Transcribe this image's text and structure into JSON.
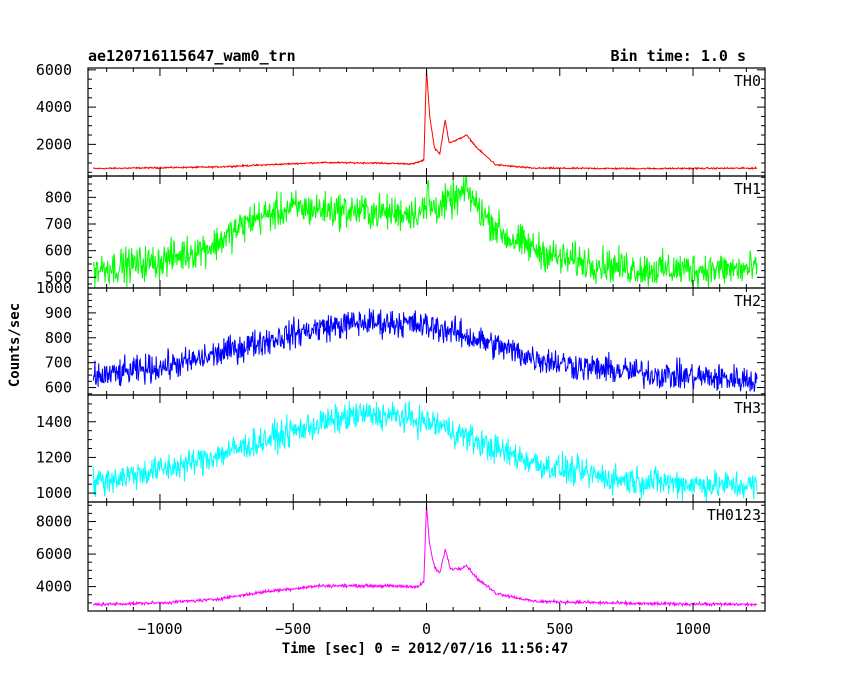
{
  "header": {
    "left_title": "ae120716115647_wam0_trn",
    "right_title": "Bin time: 1.0 s"
  },
  "chart_data": {
    "type": "line",
    "xlabel": "Time [sec] 0 = 2012/07/16 11:56:47",
    "ylabel": "Counts/sec",
    "xlim": [
      -1270,
      1270
    ],
    "x_ticks": [
      -1000,
      -500,
      0,
      500,
      1000
    ],
    "x_tick_labels": [
      "−1000",
      "−500",
      "0",
      "500",
      "1000"
    ],
    "bin_time_s": 1.0,
    "x_range_data": [
      -1250,
      1240
    ],
    "panels": [
      {
        "name": "TH0",
        "color": "#ff0000",
        "ylim": [
          300,
          6100
        ],
        "y_ticks": [
          2000,
          4000,
          6000
        ],
        "y_tick_labels": [
          "2000",
          "4000",
          "6000"
        ],
        "noise": 25,
        "key_points": [
          [
            -1250,
            700
          ],
          [
            -800,
            780
          ],
          [
            -600,
            900
          ],
          [
            -400,
            1020
          ],
          [
            -200,
            1000
          ],
          [
            -50,
            950
          ],
          [
            -10,
            1150
          ],
          [
            0,
            6050
          ],
          [
            12,
            3500
          ],
          [
            30,
            1800
          ],
          [
            50,
            1500
          ],
          [
            70,
            3300
          ],
          [
            85,
            2100
          ],
          [
            110,
            2200
          ],
          [
            150,
            2500
          ],
          [
            190,
            1800
          ],
          [
            260,
            900
          ],
          [
            400,
            720
          ],
          [
            800,
            700
          ],
          [
            1240,
            720
          ]
        ]
      },
      {
        "name": "TH1",
        "color": "#00ff00",
        "ylim": [
          460,
          880
        ],
        "y_ticks": [
          500,
          600,
          700,
          800
        ],
        "y_tick_labels": [
          "500",
          "600",
          "700",
          "800"
        ],
        "noise": 40,
        "key_points": [
          [
            -1250,
            530
          ],
          [
            -1000,
            560
          ],
          [
            -800,
            620
          ],
          [
            -650,
            720
          ],
          [
            -500,
            760
          ],
          [
            -300,
            750
          ],
          [
            -100,
            740
          ],
          [
            0,
            750
          ],
          [
            5,
            870
          ],
          [
            12,
            760
          ],
          [
            60,
            770
          ],
          [
            120,
            800
          ],
          [
            150,
            830
          ],
          [
            200,
            750
          ],
          [
            300,
            650
          ],
          [
            500,
            570
          ],
          [
            800,
            530
          ],
          [
            1240,
            530
          ]
        ]
      },
      {
        "name": "TH2",
        "color": "#0000ff",
        "ylim": [
          570,
          1000
        ],
        "y_ticks": [
          600,
          700,
          800,
          900,
          1000
        ],
        "y_tick_labels": [
          "600",
          "700",
          "800",
          "900",
          "1000"
        ],
        "noise": 35,
        "key_points": [
          [
            -1250,
            640
          ],
          [
            -900,
            700
          ],
          [
            -600,
            790
          ],
          [
            -400,
            840
          ],
          [
            -250,
            860
          ],
          [
            -100,
            860
          ],
          [
            50,
            840
          ],
          [
            200,
            790
          ],
          [
            400,
            720
          ],
          [
            600,
            680
          ],
          [
            900,
            650
          ],
          [
            1240,
            630
          ]
        ]
      },
      {
        "name": "TH3",
        "color": "#00ffff",
        "ylim": [
          950,
          1550
        ],
        "y_ticks": [
          1000,
          1200,
          1400
        ],
        "y_tick_labels": [
          "1000",
          "1200",
          "1400"
        ],
        "noise": 50,
        "key_points": [
          [
            -1250,
            1060
          ],
          [
            -900,
            1160
          ],
          [
            -600,
            1300
          ],
          [
            -400,
            1390
          ],
          [
            -250,
            1440
          ],
          [
            -100,
            1430
          ],
          [
            50,
            1380
          ],
          [
            250,
            1250
          ],
          [
            450,
            1150
          ],
          [
            700,
            1080
          ],
          [
            1000,
            1050
          ],
          [
            1240,
            1040
          ]
        ]
      },
      {
        "name": "TH0123",
        "color": "#ff00ff",
        "ylim": [
          2500,
          9200
        ],
        "y_ticks": [
          4000,
          6000,
          8000
        ],
        "y_tick_labels": [
          "4000",
          "6000",
          "8000"
        ],
        "noise": 60,
        "key_points": [
          [
            -1250,
            2900
          ],
          [
            -1000,
            3000
          ],
          [
            -800,
            3200
          ],
          [
            -600,
            3700
          ],
          [
            -400,
            4050
          ],
          [
            -200,
            4050
          ],
          [
            -30,
            4000
          ],
          [
            -10,
            4300
          ],
          [
            0,
            9000
          ],
          [
            12,
            6500
          ],
          [
            30,
            5200
          ],
          [
            50,
            4800
          ],
          [
            70,
            6300
          ],
          [
            90,
            5100
          ],
          [
            120,
            5100
          ],
          [
            150,
            5300
          ],
          [
            190,
            4500
          ],
          [
            260,
            3600
          ],
          [
            400,
            3100
          ],
          [
            800,
            2950
          ],
          [
            1240,
            2900
          ]
        ]
      }
    ]
  }
}
